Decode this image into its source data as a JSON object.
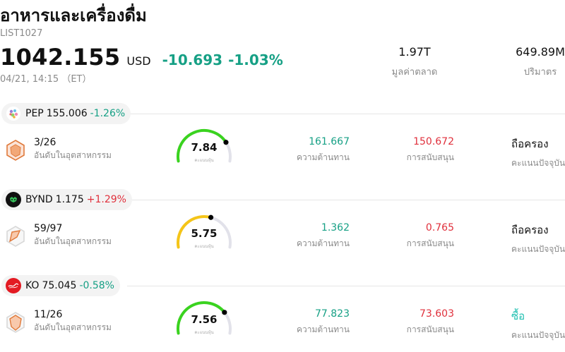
{
  "header": {
    "title": "อาหารและเครื่องดื่ม",
    "code": "LIST1027",
    "price": "1042.155",
    "currency": "USD",
    "change": "-10.693",
    "change_pct": "-1.03%",
    "time": "04/21, 14:15 （ET）",
    "market_cap_value": "1.97T",
    "market_cap_label": "มูลค่าตลาด",
    "volume_value": "649.89M",
    "volume_label": "ปริมาตร"
  },
  "stocks": [
    {
      "symbol": "PEP",
      "price": "155.006",
      "change": "-1.26%",
      "direction": "neg",
      "rank": "3/26",
      "rank_label": "อันดับในอุตสาหกรรม",
      "score": "7.84",
      "score_value": 7.84,
      "score_label": "คะแนนหุ้น",
      "gauge_color": "#3ad31f",
      "resistance": "161.667",
      "resistance_label": "ความต้านทาน",
      "support": "150.672",
      "support_label": "การสนับสนุน",
      "rating": "ถือครอง",
      "rating_type": "hold",
      "rating_label": "คะแนนปัจจุบัน",
      "logo": "pepsi-logo-icon"
    },
    {
      "symbol": "BYND",
      "price": "1.175",
      "change": "+1.29%",
      "direction": "pos",
      "rank": "59/97",
      "rank_label": "อันดับในอุตสาหกรรม",
      "score": "5.75",
      "score_value": 5.75,
      "score_label": "คะแนนหุ้น",
      "gauge_color": "#f5c518",
      "resistance": "1.362",
      "resistance_label": "ความต้านทาน",
      "support": "0.765",
      "support_label": "การสนับสนุน",
      "rating": "ถือครอง",
      "rating_type": "hold",
      "rating_label": "คะแนนปัจจุบัน",
      "logo": "beyond-meat-logo-icon"
    },
    {
      "symbol": "KO",
      "price": "75.045",
      "change": "-0.58%",
      "direction": "neg",
      "rank": "11/26",
      "rank_label": "อันดับในอุตสาหกรรม",
      "score": "7.56",
      "score_value": 7.56,
      "score_label": "คะแนนหุ้น",
      "gauge_color": "#3ad31f",
      "resistance": "77.823",
      "resistance_label": "ความต้านทาน",
      "support": "73.603",
      "support_label": "การสนับสนุน",
      "rating": "ซื้อ",
      "rating_type": "buy",
      "rating_label": "คะแนนปัจจุบัน",
      "logo": "coca-cola-logo-icon"
    }
  ]
}
